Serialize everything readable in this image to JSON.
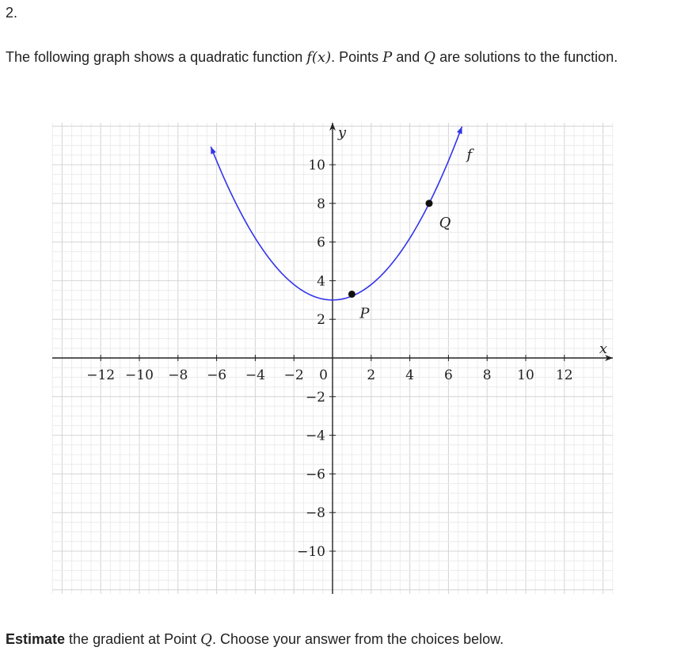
{
  "question": {
    "number": "2.",
    "intro_before_f": "The following graph shows a quadratic function ",
    "f_expr": "f(x)",
    "intro_mid1": ". Points ",
    "p_name": "P",
    "intro_mid2": " and ",
    "q_name": "Q",
    "intro_after": " are solutions to the function.",
    "prompt_bold": "Estimate",
    "prompt_mid": " the gradient at Point ",
    "prompt_q": "Q",
    "prompt_end": ". Choose your answer from the choices below."
  },
  "chart_data": {
    "type": "line",
    "xlabel": "x",
    "ylabel": "y",
    "xlim": [
      -14,
      14
    ],
    "ylim": [
      -12,
      12
    ],
    "x_ticks": [
      -12,
      -10,
      -8,
      -6,
      -4,
      -2,
      2,
      4,
      6,
      8,
      10,
      12
    ],
    "x_tick_labels": [
      "−12",
      "−10",
      "−8",
      "−6",
      "−4",
      "−2",
      "2",
      "4",
      "6",
      "8",
      "10",
      "12"
    ],
    "y_ticks": [
      10,
      8,
      6,
      4,
      2,
      -2,
      -4,
      -6,
      -8,
      -10
    ],
    "y_tick_labels": [
      "10",
      "8",
      "6",
      "4",
      "2",
      "−2",
      "−4",
      "−6",
      "−8",
      "−10"
    ],
    "origin_label": "0",
    "grid": true,
    "series": [
      {
        "name": "f",
        "color": "#3333ee",
        "function": "quadratic",
        "a": 0.2,
        "h": 0,
        "k": 3,
        "x_range": [
          -6.3,
          6.7
        ]
      }
    ],
    "points": [
      {
        "label": "P",
        "x": 1,
        "y": 3.3
      },
      {
        "label": "Q",
        "x": 5,
        "y": 8
      }
    ]
  }
}
